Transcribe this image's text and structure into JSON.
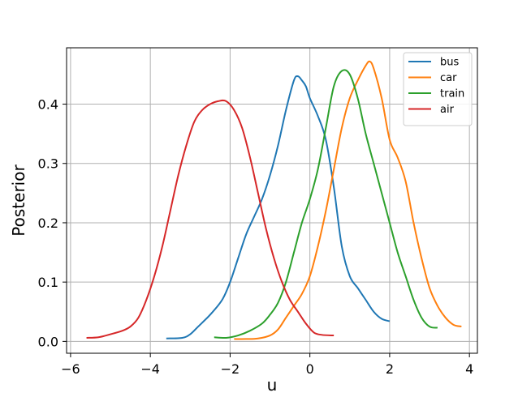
{
  "chart_data": {
    "type": "line",
    "xlabel": "u",
    "ylabel": "Posterior",
    "xlim": [
      -6.1,
      4.2
    ],
    "ylim": [
      -0.02,
      0.495
    ],
    "x_ticks": [
      -6,
      -4,
      -2,
      0,
      2,
      4
    ],
    "y_ticks": [
      0.0,
      0.1,
      0.2,
      0.3,
      0.4
    ],
    "x_tick_labels": [
      "−6",
      "−4",
      "−2",
      "0",
      "2",
      "4"
    ],
    "y_tick_labels": [
      "0.0",
      "0.1",
      "0.2",
      "0.3",
      "0.4"
    ],
    "grid": true,
    "legend_position": "top-right",
    "series": [
      {
        "name": "bus",
        "color": "#1f77b4",
        "x": [
          -3.6,
          -3.2,
          -3.0,
          -2.8,
          -2.5,
          -2.2,
          -2.0,
          -1.8,
          -1.6,
          -1.4,
          -1.2,
          -1.0,
          -0.8,
          -0.6,
          -0.4,
          -0.3,
          -0.2,
          -0.1,
          0.0,
          0.2,
          0.4,
          0.6,
          0.8,
          1.0,
          1.2,
          1.4,
          1.6,
          1.8,
          2.0
        ],
        "y": [
          0.005,
          0.006,
          0.012,
          0.025,
          0.045,
          0.07,
          0.1,
          0.14,
          0.18,
          0.21,
          0.24,
          0.28,
          0.33,
          0.39,
          0.44,
          0.447,
          0.44,
          0.43,
          0.41,
          0.38,
          0.34,
          0.26,
          0.16,
          0.11,
          0.09,
          0.07,
          0.05,
          0.038,
          0.034
        ]
      },
      {
        "name": "car",
        "color": "#ff7f0e",
        "x": [
          -1.9,
          -1.6,
          -1.3,
          -1.0,
          -0.8,
          -0.6,
          -0.4,
          -0.2,
          0.0,
          0.2,
          0.4,
          0.6,
          0.8,
          1.0,
          1.2,
          1.4,
          1.5,
          1.6,
          1.8,
          2.0,
          2.2,
          2.4,
          2.6,
          2.8,
          3.0,
          3.2,
          3.4,
          3.6,
          3.8
        ],
        "y": [
          0.004,
          0.004,
          0.005,
          0.01,
          0.02,
          0.04,
          0.06,
          0.08,
          0.11,
          0.16,
          0.22,
          0.29,
          0.36,
          0.41,
          0.44,
          0.465,
          0.472,
          0.46,
          0.41,
          0.34,
          0.31,
          0.27,
          0.2,
          0.14,
          0.09,
          0.06,
          0.04,
          0.028,
          0.025
        ]
      },
      {
        "name": "train",
        "color": "#2ca02c",
        "x": [
          -2.4,
          -2.1,
          -1.8,
          -1.5,
          -1.2,
          -1.0,
          -0.8,
          -0.6,
          -0.4,
          -0.2,
          0.0,
          0.2,
          0.4,
          0.6,
          0.8,
          1.0,
          1.2,
          1.4,
          1.6,
          1.8,
          2.0,
          2.2,
          2.4,
          2.6,
          2.8,
          3.0,
          3.2
        ],
        "y": [
          0.007,
          0.006,
          0.01,
          0.018,
          0.03,
          0.045,
          0.065,
          0.1,
          0.15,
          0.2,
          0.24,
          0.29,
          0.36,
          0.43,
          0.456,
          0.45,
          0.41,
          0.35,
          0.3,
          0.25,
          0.2,
          0.15,
          0.11,
          0.07,
          0.04,
          0.025,
          0.023
        ]
      },
      {
        "name": "air",
        "color": "#d62728",
        "x": [
          -5.6,
          -5.3,
          -5.0,
          -4.7,
          -4.5,
          -4.3,
          -4.1,
          -3.9,
          -3.7,
          -3.5,
          -3.3,
          -3.1,
          -2.9,
          -2.7,
          -2.5,
          -2.3,
          -2.1,
          -1.9,
          -1.7,
          -1.5,
          -1.3,
          -1.1,
          -0.9,
          -0.7,
          -0.5,
          -0.3,
          -0.1,
          0.1,
          0.3,
          0.6
        ],
        "y": [
          0.006,
          0.007,
          0.012,
          0.018,
          0.025,
          0.04,
          0.07,
          0.11,
          0.16,
          0.22,
          0.28,
          0.33,
          0.37,
          0.39,
          0.4,
          0.405,
          0.405,
          0.39,
          0.36,
          0.31,
          0.25,
          0.19,
          0.14,
          0.1,
          0.07,
          0.05,
          0.03,
          0.015,
          0.011,
          0.01
        ]
      }
    ]
  }
}
